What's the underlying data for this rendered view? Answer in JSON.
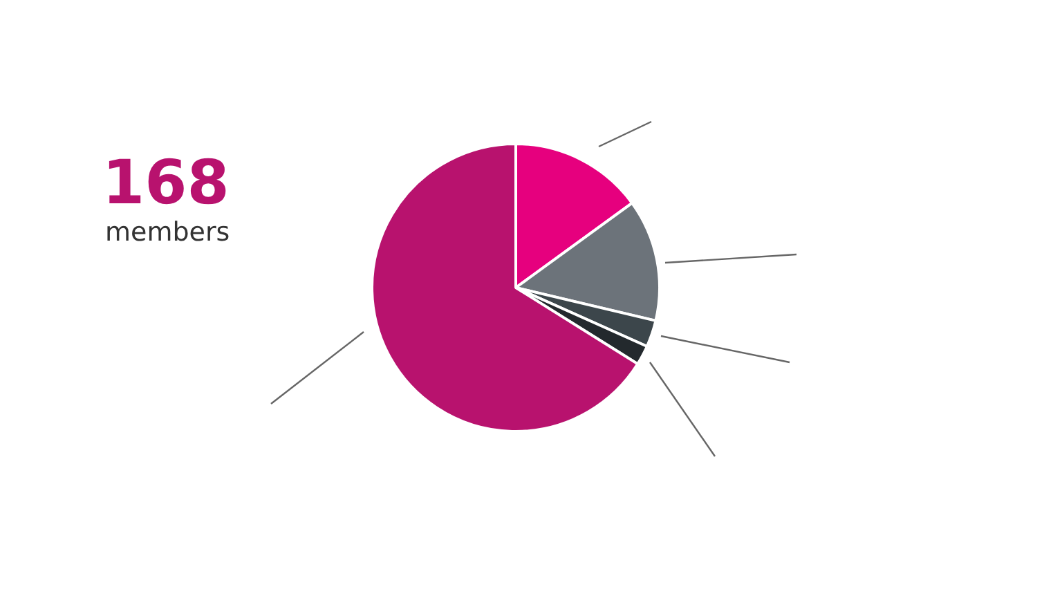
{
  "chart_data": {
    "type": "pie",
    "categories": [
      null,
      null,
      null,
      null,
      null
    ],
    "values": [
      15,
      13.7,
      3,
      2.2,
      66.1
    ],
    "colors": [
      "#e6007e",
      "#6c737a",
      "#3c464b",
      "#23292d",
      "#b8126e"
    ],
    "annotations": [
      "168",
      "members"
    ],
    "legend": false
  }
}
